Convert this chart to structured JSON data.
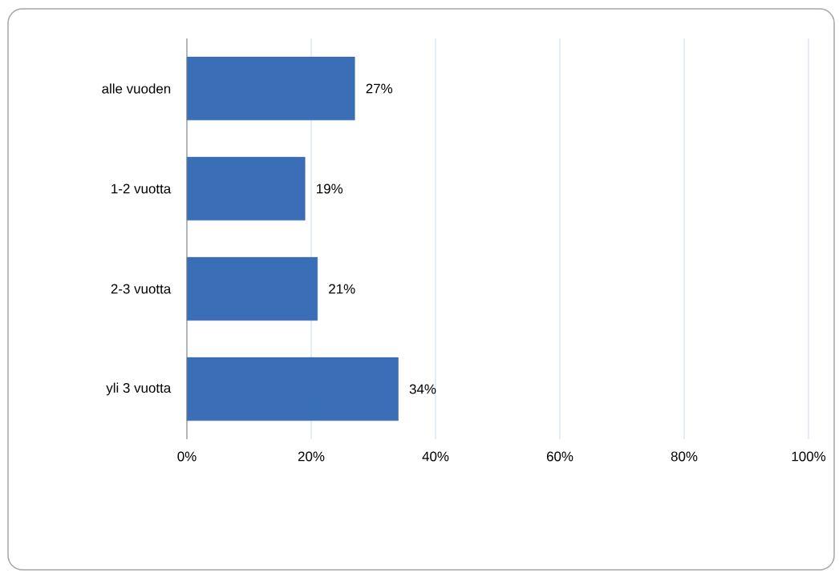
{
  "chart_data": {
    "type": "bar",
    "orientation": "horizontal",
    "categories": [
      "alle vuoden",
      "1-2 vuotta",
      "2-3 vuotta",
      "yli 3 vuotta"
    ],
    "values": [
      27,
      19,
      21,
      34
    ],
    "value_labels": [
      "27%",
      "19%",
      "21%",
      "34%"
    ],
    "color": "#3a6fb8",
    "xlim": [
      0,
      100
    ],
    "xticks": [
      {
        "value": 0,
        "label": "0%"
      },
      {
        "value": 20,
        "label": "20%"
      },
      {
        "value": 40,
        "label": "40%"
      },
      {
        "value": 60,
        "label": "60%"
      },
      {
        "value": 80,
        "label": "80%"
      },
      {
        "value": 100,
        "label": "100%"
      }
    ],
    "grid": "x"
  }
}
